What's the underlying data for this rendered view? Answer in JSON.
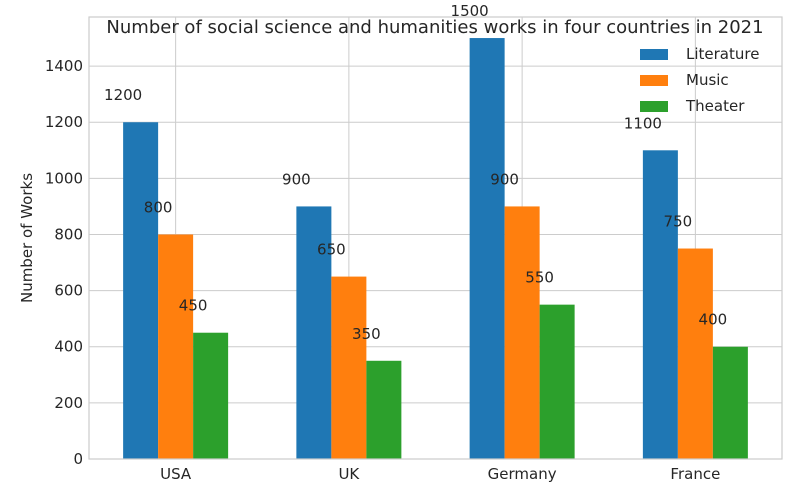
{
  "chart_data": {
    "type": "bar",
    "title": "Number of social science and humanities works in four countries in 2021",
    "xlabel": "",
    "ylabel": "Number of Works",
    "categories": [
      "USA",
      "UK",
      "Germany",
      "France"
    ],
    "series": [
      {
        "name": "Literature",
        "color": "#1f77b4",
        "values": [
          1200,
          900,
          1500,
          1100
        ]
      },
      {
        "name": "Music",
        "color": "#ff7f0e",
        "values": [
          800,
          650,
          900,
          750
        ]
      },
      {
        "name": "Theater",
        "color": "#2ca02c",
        "values": [
          450,
          350,
          550,
          400
        ]
      }
    ],
    "ylim": [
      0,
      1575
    ],
    "yticks": [
      0,
      200,
      400,
      600,
      800,
      1000,
      1200,
      1400
    ],
    "grid": true,
    "legend": "top-right"
  }
}
